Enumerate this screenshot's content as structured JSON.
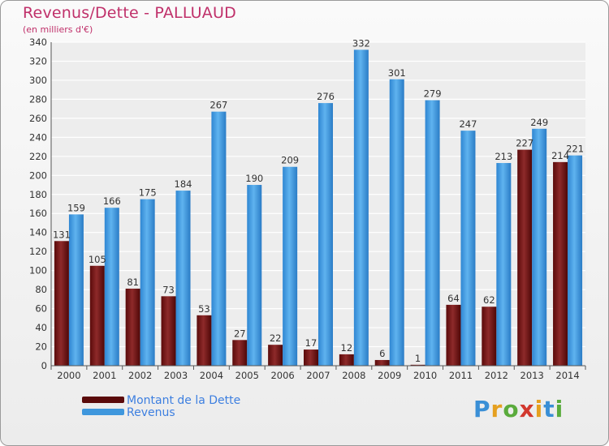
{
  "header": {
    "title": "Revenus/Dette - PALLUAUD",
    "subtitle": "(en milliers d'€)"
  },
  "chart_data": {
    "type": "bar",
    "categories": [
      "2000",
      "2001",
      "2002",
      "2003",
      "2004",
      "2005",
      "2006",
      "2007",
      "2008",
      "2009",
      "2010",
      "2011",
      "2012",
      "2013",
      "2014"
    ],
    "series": [
      {
        "name": "Montant de la Dette",
        "color": "#7a1a1a",
        "values": [
          131,
          105,
          81,
          73,
          53,
          27,
          22,
          17,
          12,
          6,
          1,
          64,
          62,
          227,
          214
        ]
      },
      {
        "name": "Revenus",
        "color": "#4aa3e8",
        "values": [
          159,
          166,
          175,
          184,
          267,
          190,
          209,
          276,
          332,
          301,
          279,
          247,
          213,
          249,
          221
        ]
      }
    ],
    "data_labels": {
      "debt": [
        "131",
        "105",
        "81",
        "73",
        "53",
        "27",
        "22",
        "17",
        "12",
        "6",
        "1",
        "64",
        "62",
        "227",
        "214"
      ],
      "revenue": [
        "159",
        "166",
        "175",
        "184",
        "267",
        "190",
        "209",
        "276",
        "332",
        "301",
        "279",
        "247",
        "213",
        "249",
        "221"
      ]
    },
    "ylim": [
      0,
      340
    ],
    "yticks": [
      "0",
      "20",
      "40",
      "60",
      "80",
      "100",
      "120",
      "140",
      "160",
      "180",
      "200",
      "220",
      "240",
      "260",
      "280",
      "300",
      "320",
      "340"
    ],
    "grid": true,
    "legend_position": "bottom-left"
  },
  "legend": {
    "debt_label": "Montant de la Dette",
    "revenue_label": "Revenus"
  },
  "brand": {
    "letters": [
      "P",
      "r",
      "o",
      "x",
      "i",
      "t",
      "i"
    ],
    "colors": [
      "#3a8fd6",
      "#e5a020",
      "#5aab3c",
      "#d2382e",
      "#e5a020",
      "#3a8fd6",
      "#5aab3c"
    ]
  }
}
